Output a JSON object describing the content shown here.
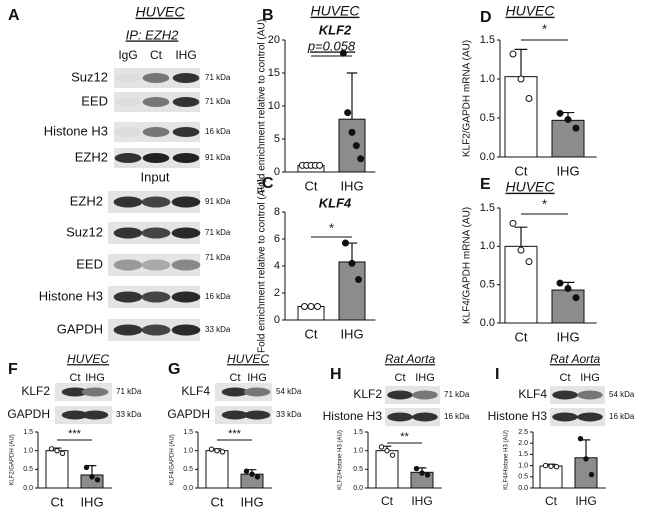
{
  "blot_panels": [
    {
      "letter": "A",
      "title": "HUVEC",
      "sections": [
        {
          "header": "IP: EZH2",
          "lanes": [
            "IgG",
            "Ct",
            "IHG"
          ],
          "rows": [
            {
              "label": "Suz12",
              "size": "71 kDa"
            },
            {
              "label": "EED",
              "size": "71 kDa"
            },
            {
              "label": "Histone H3",
              "size": "16 kDa"
            },
            {
              "label": "EZH2",
              "size": "91 kDa"
            }
          ]
        },
        {
          "header": "Input",
          "rows": [
            {
              "label": "EZH2",
              "size": "91 kDa"
            },
            {
              "label": "Suz12",
              "size": "71 kDa"
            },
            {
              "label": "EED",
              "size": "71 kDa"
            },
            {
              "label": "Histone H3",
              "size": "16 kDa"
            },
            {
              "label": "GAPDH",
              "size": "33 kDa"
            }
          ]
        }
      ]
    },
    {
      "letter": "F",
      "title": "HUVEC",
      "lanes": [
        "Ct",
        "IHG"
      ],
      "rows": [
        {
          "label": "KLF2",
          "size": "71 kDa"
        },
        {
          "label": "GAPDH",
          "size": "33 kDa"
        }
      ]
    },
    {
      "letter": "G",
      "title": "HUVEC",
      "lanes": [
        "Ct",
        "IHG"
      ],
      "rows": [
        {
          "label": "KLF4",
          "size": "54 kDa"
        },
        {
          "label": "GAPDH",
          "size": "33 kDa"
        }
      ]
    },
    {
      "letter": "H",
      "title": "Rat Aorta",
      "lanes": [
        "Ct",
        "IHG"
      ],
      "rows": [
        {
          "label": "KLF2",
          "size": "71 kDa"
        },
        {
          "label": "Histone H3",
          "size": "16 kDa"
        }
      ]
    },
    {
      "letter": "I",
      "title": "Rat Aorta",
      "lanes": [
        "Ct",
        "IHG"
      ],
      "rows": [
        {
          "label": "KLF4",
          "size": "54 kDa"
        },
        {
          "label": "Histone H3",
          "size": "16 kDa"
        }
      ]
    }
  ],
  "chart_data": [
    {
      "type": "bar",
      "letter": "B",
      "title": "HUVEC",
      "subtitle": "KLF2",
      "annotation": "p=0.058",
      "y_label": "Fold enrichment relative to control (AU)",
      "categories": [
        "Ct",
        "IHG"
      ],
      "values": [
        1,
        8
      ],
      "errors": [
        0,
        7
      ],
      "points": [
        [
          1,
          1,
          1,
          1,
          1
        ],
        [
          18,
          9,
          6,
          4,
          2
        ]
      ],
      "colors": [
        "#ffffff",
        "#8c8c8c"
      ],
      "ylim": [
        0,
        20
      ],
      "yticks": [
        0,
        5,
        10,
        15,
        20
      ]
    },
    {
      "type": "bar",
      "letter": "C",
      "subtitle": "KLF4",
      "annotation": "*",
      "y_label": "Fold enrichment relative to control (AU)",
      "categories": [
        "Ct",
        "IHG"
      ],
      "values": [
        1,
        4.3
      ],
      "errors": [
        0,
        1.4
      ],
      "points": [
        [
          1,
          1,
          1
        ],
        [
          5.7,
          4.2,
          3
        ]
      ],
      "colors": [
        "#ffffff",
        "#8c8c8c"
      ],
      "ylim": [
        0,
        8
      ],
      "yticks": [
        0,
        2,
        4,
        6,
        8
      ]
    },
    {
      "type": "bar",
      "letter": "D",
      "title": "HUVEC",
      "annotation": "*",
      "y_label": "KLF2/GAPDH mRNA (AU)",
      "categories": [
        "Ct",
        "IHG"
      ],
      "values": [
        1.03,
        0.47
      ],
      "errors": [
        0.35,
        0.1
      ],
      "points": [
        [
          1.32,
          1.0,
          0.75
        ],
        [
          0.56,
          0.48,
          0.37
        ]
      ],
      "colors": [
        "#ffffff",
        "#8c8c8c"
      ],
      "ylim": [
        0,
        1.5
      ],
      "yticks": [
        {
          "value": 0,
          "label": "0.0"
        },
        0.5,
        {
          "value": 1,
          "label": "1.0"
        },
        1.5
      ]
    },
    {
      "type": "bar",
      "letter": "E",
      "title": "HUVEC",
      "annotation": "*",
      "y_label": "KLF4/GAPDH mRNA (AU)",
      "categories": [
        "Ct",
        "IHG"
      ],
      "values": [
        1.0,
        0.43
      ],
      "errors": [
        0.25,
        0.1
      ],
      "points": [
        [
          1.3,
          0.95,
          0.8
        ],
        [
          0.52,
          0.45,
          0.33
        ]
      ],
      "colors": [
        "#ffffff",
        "#8c8c8c"
      ],
      "ylim": [
        0,
        1.5
      ],
      "yticks": [
        {
          "value": 0,
          "label": "0.0"
        },
        0.5,
        {
          "value": 1,
          "label": "1.0"
        },
        1.5
      ]
    },
    {
      "type": "bar",
      "annotation": "***",
      "y_label": "KLF2/GAPDH (AU)",
      "categories": [
        "Ct",
        "IHG"
      ],
      "values": [
        1.0,
        0.35
      ],
      "errors": [
        0.07,
        0.25
      ],
      "points": [
        [
          1.05,
          1.0,
          0.93
        ],
        [
          0.55,
          0.3,
          0.22
        ]
      ],
      "colors": [
        "#ffffff",
        "#8c8c8c"
      ],
      "ylim": [
        0,
        1.5
      ],
      "yticks": [
        {
          "value": 0,
          "label": "0.0"
        },
        0.5,
        {
          "value": 1,
          "label": "1.0"
        },
        1.5
      ]
    },
    {
      "type": "bar",
      "annotation": "***",
      "y_label": "KLF4/GAPDH (AU)",
      "categories": [
        "Ct",
        "IHG"
      ],
      "values": [
        1.0,
        0.37
      ],
      "errors": [
        0.05,
        0.12
      ],
      "points": [
        [
          1.04,
          1.0,
          0.97
        ],
        [
          0.45,
          0.37,
          0.3
        ]
      ],
      "colors": [
        "#ffffff",
        "#8c8c8c"
      ],
      "ylim": [
        0,
        1.5
      ],
      "yticks": [
        {
          "value": 0,
          "label": "0.0"
        },
        0.5,
        {
          "value": 1,
          "label": "1.0"
        },
        1.5
      ]
    },
    {
      "type": "bar",
      "annotation": "**",
      "y_label": "KLF2/Histone H3 (AU)",
      "categories": [
        "Ct",
        "IHG"
      ],
      "values": [
        1.0,
        0.42
      ],
      "errors": [
        0.12,
        0.12
      ],
      "points": [
        [
          1.1,
          1.0,
          0.88
        ],
        [
          0.52,
          0.4,
          0.35
        ]
      ],
      "colors": [
        "#ffffff",
        "#8c8c8c"
      ],
      "ylim": [
        0,
        1.5
      ],
      "yticks": [
        {
          "value": 0,
          "label": "0.0"
        },
        0.5,
        {
          "value": 1,
          "label": "1.0"
        },
        1.5
      ]
    },
    {
      "type": "bar",
      "y_label": "KLF4/Histone H3 (AU)",
      "categories": [
        "Ct",
        "IHG"
      ],
      "values": [
        0.98,
        1.35
      ],
      "errors": [
        0.08,
        0.8
      ],
      "points": [
        [
          1.0,
          0.97,
          0.95
        ],
        [
          2.2,
          1.3,
          0.6
        ]
      ],
      "colors": [
        "#ffffff",
        "#8c8c8c"
      ],
      "ylim": [
        0,
        2.5
      ],
      "yticks": [
        {
          "value": 0,
          "label": "0.0"
        },
        0.5,
        {
          "value": 1,
          "label": "1.0"
        },
        1.5,
        {
          "value": 2,
          "label": "2.0"
        },
        2.5
      ]
    }
  ]
}
